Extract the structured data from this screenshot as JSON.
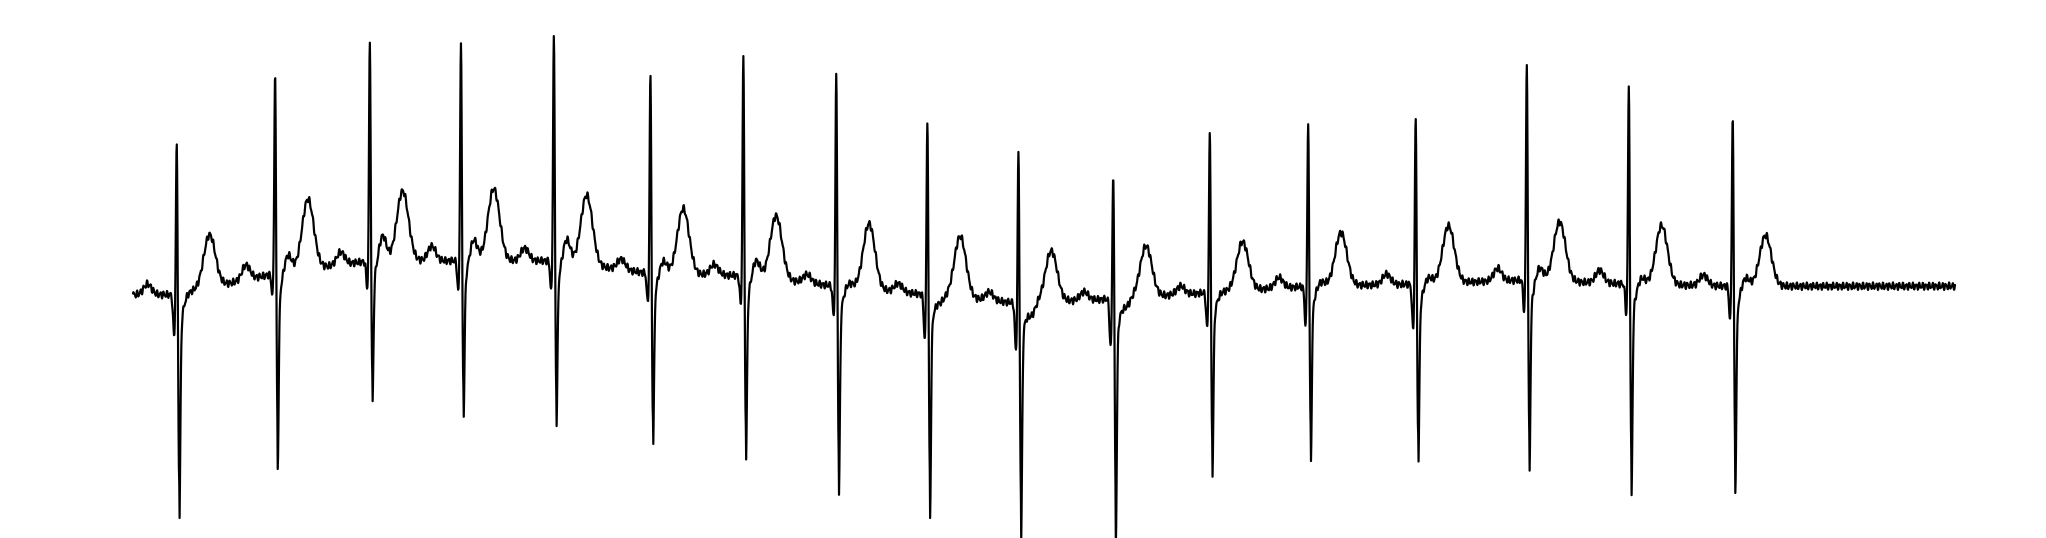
{
  "chart_data": {
    "type": "line",
    "title": "",
    "xlabel": "",
    "ylabel": "",
    "grid": false,
    "axes_visible": false,
    "line_color": "#000000",
    "background_color": "#ffffff",
    "xlim": [
      0,
      10
    ],
    "ylim": [
      -1.0,
      1.2
    ],
    "beats": [
      {
        "t": 0.24,
        "r": 0.75,
        "s": -0.9,
        "qpeak": -0.2,
        "st": 0.0,
        "t_amp": 0.25,
        "t_off": 0.18,
        "p_amp": 0.05,
        "base": -0.04
      },
      {
        "t": 0.78,
        "r": 0.98,
        "s": -0.74,
        "qpeak": -0.1,
        "st": 0.08,
        "t_amp": 0.33,
        "t_off": 0.18,
        "p_amp": 0.07,
        "base": 0.06
      },
      {
        "t": 1.3,
        "r": 1.06,
        "s": -0.56,
        "qpeak": -0.13,
        "st": 0.12,
        "t_amp": 0.33,
        "t_off": 0.18,
        "p_amp": 0.06,
        "base": 0.12
      },
      {
        "t": 1.8,
        "r": 1.06,
        "s": -0.61,
        "qpeak": -0.15,
        "st": 0.1,
        "t_amp": 0.34,
        "t_off": 0.18,
        "p_amp": 0.07,
        "base": 0.12
      },
      {
        "t": 2.31,
        "r": 1.09,
        "s": -0.63,
        "qpeak": -0.15,
        "st": 0.11,
        "t_amp": 0.33,
        "t_off": 0.18,
        "p_amp": 0.06,
        "base": 0.12
      },
      {
        "t": 2.84,
        "r": 0.97,
        "s": -0.69,
        "qpeak": -0.15,
        "st": 0.06,
        "t_amp": 0.31,
        "t_off": 0.18,
        "p_amp": 0.05,
        "base": 0.06
      },
      {
        "t": 3.35,
        "r": 1.06,
        "s": -0.73,
        "qpeak": -0.14,
        "st": 0.08,
        "t_amp": 0.3,
        "t_off": 0.18,
        "p_amp": 0.05,
        "base": 0.05
      },
      {
        "t": 3.86,
        "r": 1.03,
        "s": -0.81,
        "qpeak": -0.15,
        "st": 0.02,
        "t_amp": 0.31,
        "t_off": 0.18,
        "p_amp": 0.04,
        "base": 0.0
      },
      {
        "t": 4.36,
        "r": 0.87,
        "s": -0.86,
        "qpeak": -0.21,
        "st": -0.03,
        "t_amp": 0.29,
        "t_off": 0.18,
        "p_amp": 0.04,
        "base": -0.04
      },
      {
        "t": 4.86,
        "r": 0.75,
        "s": -0.92,
        "qpeak": -0.23,
        "st": -0.06,
        "t_amp": 0.24,
        "t_off": 0.18,
        "p_amp": 0.04,
        "base": -0.08
      },
      {
        "t": 5.38,
        "r": 0.64,
        "s": -0.93,
        "qpeak": -0.23,
        "st": -0.04,
        "t_amp": 0.24,
        "t_off": 0.18,
        "p_amp": 0.04,
        "base": -0.06
      },
      {
        "t": 5.91,
        "r": 0.79,
        "s": -0.71,
        "qpeak": -0.17,
        "st": 0.0,
        "t_amp": 0.23,
        "t_off": 0.18,
        "p_amp": 0.04,
        "base": -0.03
      },
      {
        "t": 6.45,
        "r": 0.81,
        "s": -0.68,
        "qpeak": -0.18,
        "st": 0.02,
        "t_amp": 0.25,
        "t_off": 0.18,
        "p_amp": 0.05,
        "base": 0.0
      },
      {
        "t": 7.04,
        "r": 0.82,
        "s": -0.72,
        "qpeak": -0.22,
        "st": 0.03,
        "t_amp": 0.27,
        "t_off": 0.18,
        "p_amp": 0.05,
        "base": 0.01
      },
      {
        "t": 7.65,
        "r": 1.06,
        "s": -0.74,
        "qpeak": -0.15,
        "st": 0.06,
        "t_amp": 0.28,
        "t_off": 0.18,
        "p_amp": 0.06,
        "base": 0.03
      },
      {
        "t": 8.21,
        "r": 0.97,
        "s": -0.82,
        "qpeak": -0.14,
        "st": 0.03,
        "t_amp": 0.28,
        "t_off": 0.18,
        "p_amp": 0.06,
        "base": 0.01
      },
      {
        "t": 8.78,
        "r": 0.84,
        "s": -0.78,
        "qpeak": -0.16,
        "st": 0.04,
        "t_amp": 0.24,
        "t_off": 0.18,
        "p_amp": 0.05,
        "base": 0.0
      }
    ]
  }
}
